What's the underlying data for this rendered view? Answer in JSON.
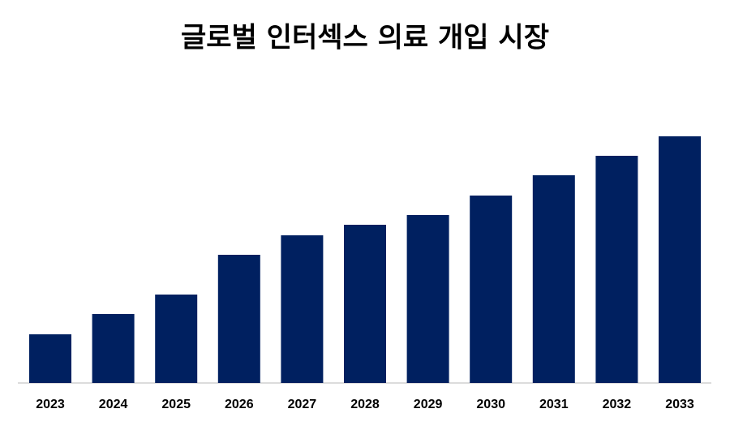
{
  "chart_data": {
    "type": "bar",
    "title": "글로벌 인터섹스 의료 개입 시장",
    "categories": [
      "2023",
      "2024",
      "2025",
      "2026",
      "2027",
      "2028",
      "2029",
      "2030",
      "2031",
      "2032",
      "2033"
    ],
    "values": [
      60,
      85,
      109,
      158,
      182,
      195,
      207,
      231,
      256,
      280,
      304
    ],
    "color": "#002060"
  }
}
